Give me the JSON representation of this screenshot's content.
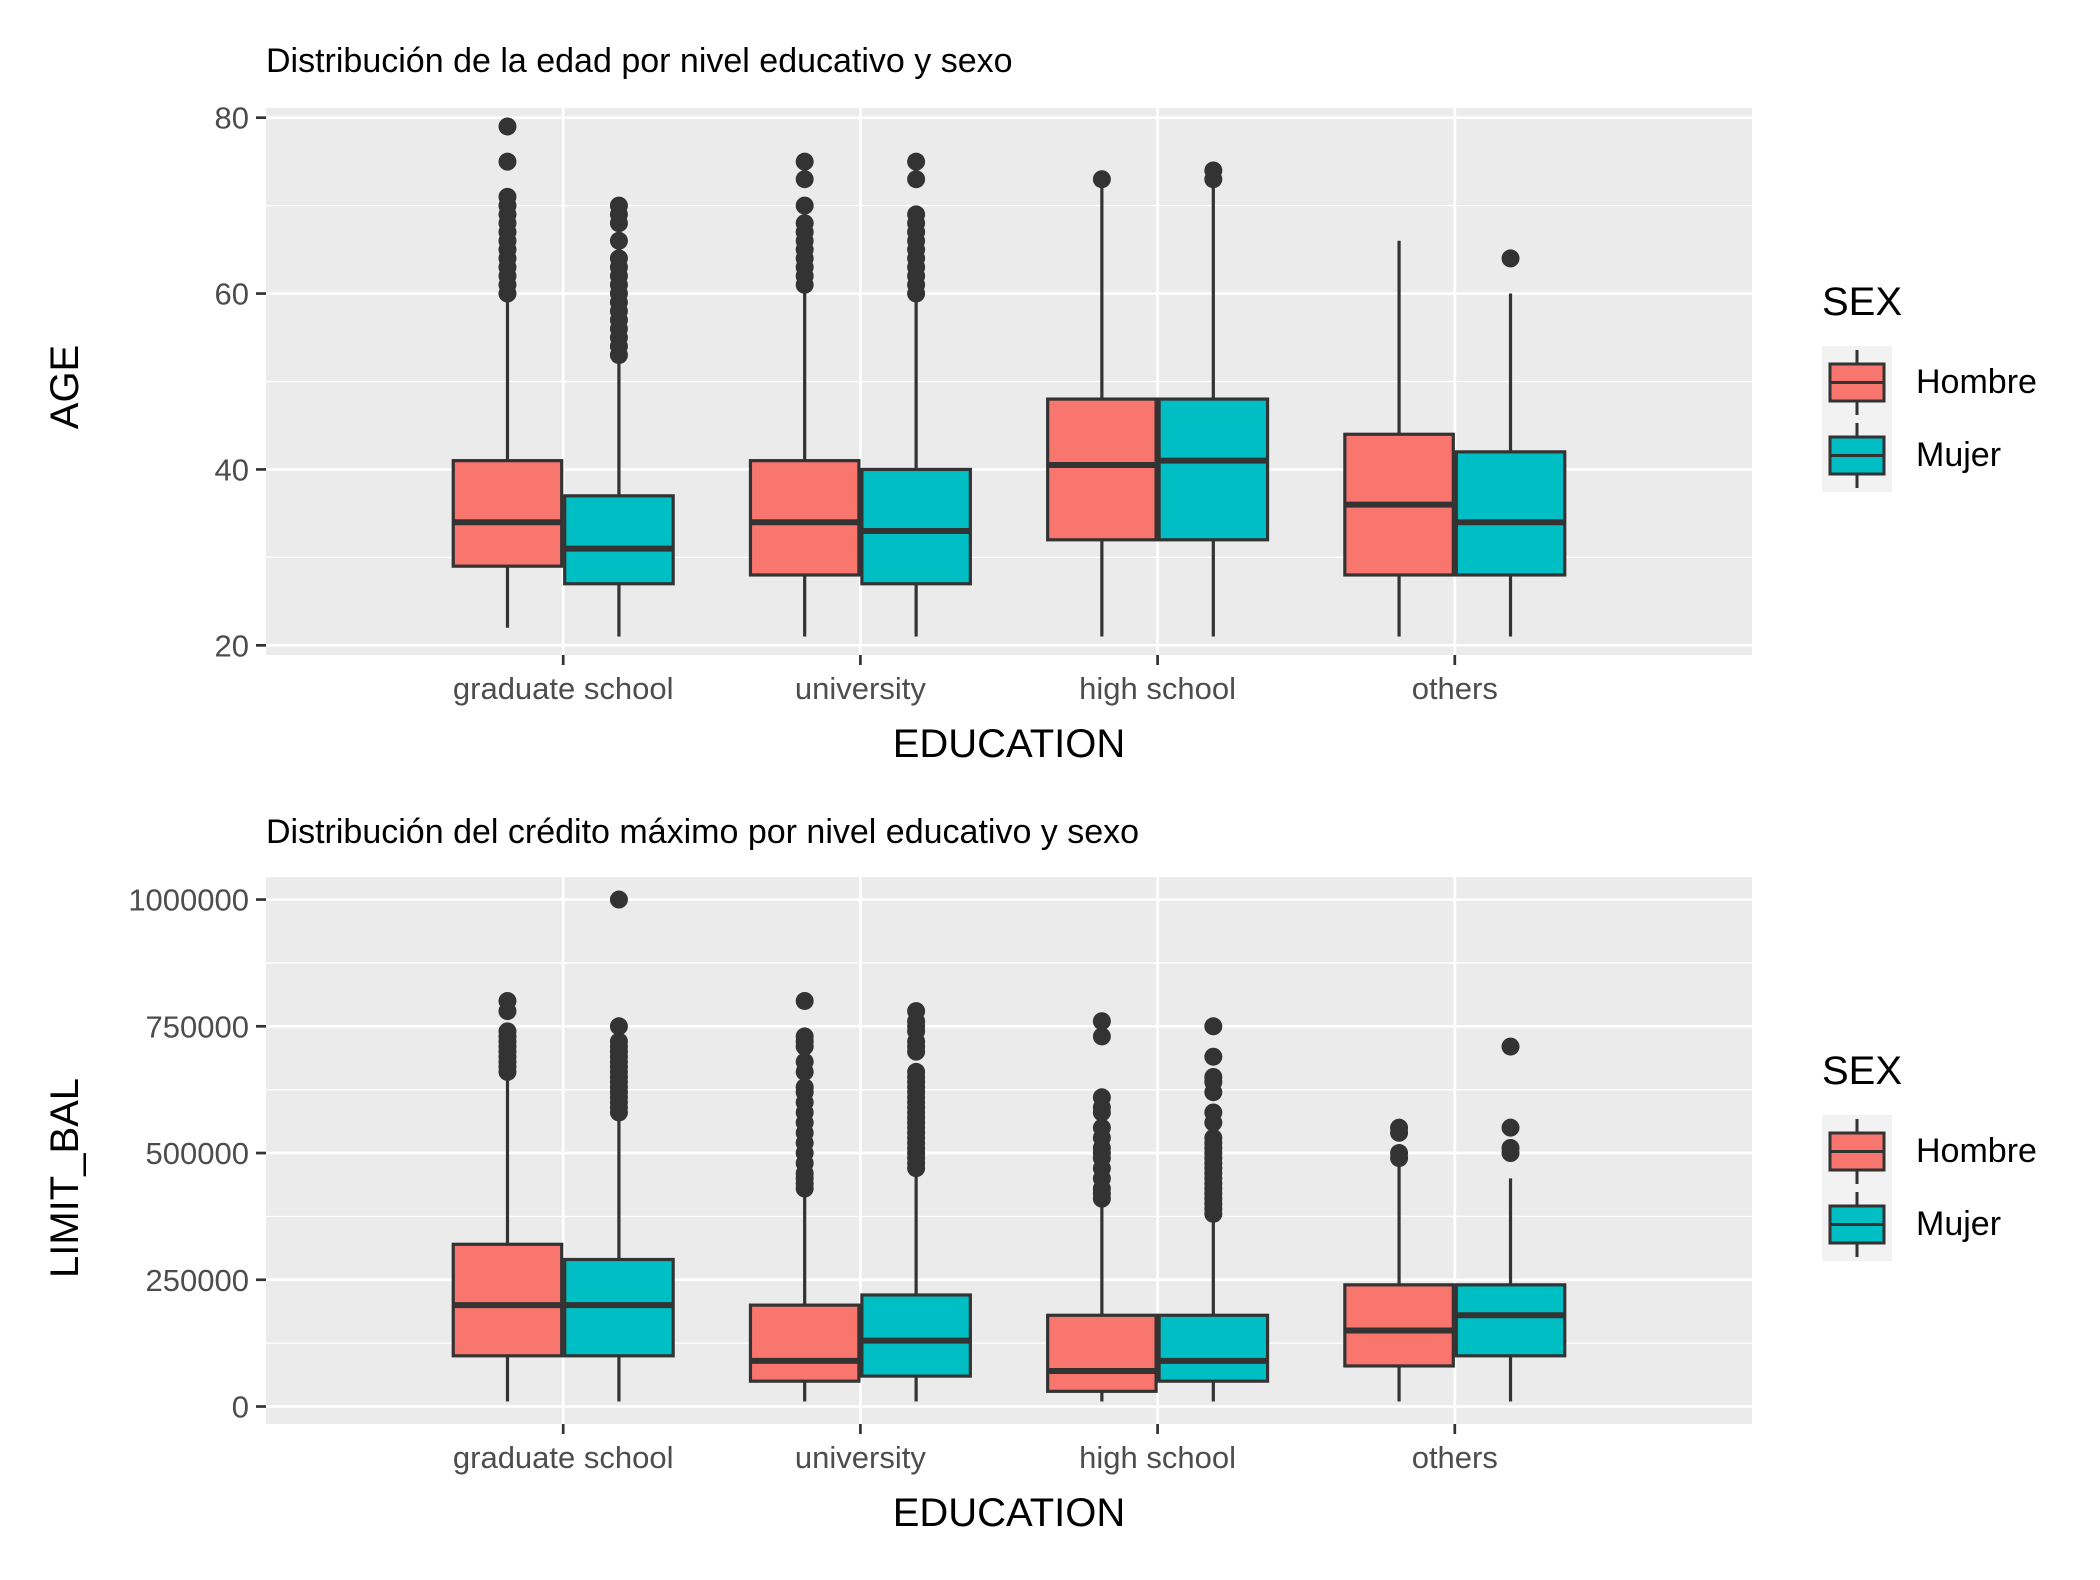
{
  "chart_data": [
    {
      "type": "boxplot",
      "title": "Distribución de la edad por nivel educativo y sexo",
      "xlabel": "EDUCATION",
      "ylabel": "AGE",
      "categories": [
        "graduate school",
        "university",
        "high school",
        "others"
      ],
      "ylim": [
        18.9,
        81.1
      ],
      "yticks": [
        20,
        40,
        60,
        80
      ],
      "ytick_labels": [
        "20",
        "40",
        "60",
        "80"
      ],
      "legend": {
        "title": "SEX",
        "placement": "right",
        "entries": [
          "Hombre",
          "Mujer"
        ]
      },
      "colors": {
        "Hombre": "#F8766D",
        "Mujer": "#00BFC4"
      },
      "series": [
        {
          "name": "Hombre",
          "boxes": [
            {
              "low": 22,
              "q1": 29,
              "median": 34,
              "q3": 41,
              "high": 59,
              "outliers": [
                60,
                61,
                62,
                63,
                64,
                65,
                66,
                67,
                68,
                69,
                70,
                71,
                75,
                79
              ]
            },
            {
              "low": 21,
              "q1": 28,
              "median": 34,
              "q3": 41,
              "high": 60,
              "outliers": [
                61,
                62,
                63,
                64,
                65,
                66,
                67,
                68,
                70,
                73,
                75
              ]
            },
            {
              "low": 21,
              "q1": 32,
              "median": 40.5,
              "q3": 48,
              "high": 72,
              "outliers": [
                73
              ]
            },
            {
              "low": 21,
              "q1": 28,
              "median": 36,
              "q3": 44,
              "high": 66,
              "outliers": []
            }
          ]
        },
        {
          "name": "Mujer",
          "boxes": [
            {
              "low": 21,
              "q1": 27,
              "median": 31,
              "q3": 37,
              "high": 52.5,
              "outliers": [
                53,
                54,
                55,
                56,
                57,
                58,
                59,
                60,
                61,
                62,
                63,
                64,
                66,
                68,
                69,
                70
              ]
            },
            {
              "low": 21,
              "q1": 27,
              "median": 33,
              "q3": 40,
              "high": 59,
              "outliers": [
                60,
                61,
                62,
                63,
                64,
                65,
                66,
                67,
                68,
                69,
                73,
                75
              ]
            },
            {
              "low": 21,
              "q1": 32,
              "median": 41,
              "q3": 48,
              "high": 72,
              "outliers": [
                73,
                74
              ]
            },
            {
              "low": 21,
              "q1": 28,
              "median": 34,
              "q3": 42,
              "high": 60,
              "outliers": [
                64
              ]
            }
          ]
        }
      ]
    },
    {
      "type": "boxplot",
      "title": "Distribución del crédito máximo por nivel educativo y sexo",
      "xlabel": "EDUCATION",
      "ylabel": "LIMIT_BAL",
      "categories": [
        "graduate school",
        "university",
        "high school",
        "others"
      ],
      "ylim": [
        -34500,
        1044500
      ],
      "yticks": [
        0,
        250000,
        500000,
        750000,
        1000000
      ],
      "ytick_labels": [
        "0",
        "250000",
        "500000",
        "750000",
        "1000000"
      ],
      "legend": {
        "title": "SEX",
        "placement": "right",
        "entries": [
          "Hombre",
          "Mujer"
        ]
      },
      "colors": {
        "Hombre": "#F8766D",
        "Mujer": "#00BFC4"
      },
      "series": [
        {
          "name": "Hombre",
          "boxes": [
            {
              "low": 10000,
              "q1": 100000,
              "median": 200000,
              "q3": 320000,
              "high": 650000,
              "outliers": [
                660000,
                670000,
                680000,
                690000,
                700000,
                710000,
                720000,
                730000,
                740000,
                780000,
                800000
              ]
            },
            {
              "low": 10000,
              "q1": 50000,
              "median": 90000,
              "q3": 200000,
              "high": 420000,
              "outliers": [
                430000,
                440000,
                450000,
                460000,
                480000,
                500000,
                520000,
                540000,
                560000,
                580000,
                600000,
                620000,
                630000,
                660000,
                680000,
                710000,
                720000,
                730000,
                800000
              ]
            },
            {
              "low": 10000,
              "q1": 30000,
              "median": 70000,
              "q3": 180000,
              "high": 400000,
              "outliers": [
                410000,
                420000,
                430000,
                450000,
                470000,
                490000,
                500000,
                510000,
                530000,
                550000,
                580000,
                590000,
                610000,
                730000,
                760000
              ]
            },
            {
              "low": 10000,
              "q1": 80000,
              "median": 150000,
              "q3": 240000,
              "high": 480000,
              "outliers": [
                490000,
                500000,
                540000,
                550000
              ]
            }
          ]
        },
        {
          "name": "Mujer",
          "boxes": [
            {
              "low": 10000,
              "q1": 100000,
              "median": 200000,
              "q3": 290000,
              "high": 570000,
              "outliers": [
                580000,
                590000,
                600000,
                610000,
                620000,
                630000,
                640000,
                650000,
                660000,
                670000,
                680000,
                690000,
                700000,
                710000,
                720000,
                750000,
                1000000
              ]
            },
            {
              "low": 10000,
              "q1": 60000,
              "median": 130000,
              "q3": 220000,
              "high": 460000,
              "outliers": [
                470000,
                480000,
                490000,
                500000,
                510000,
                520000,
                530000,
                540000,
                550000,
                560000,
                570000,
                580000,
                590000,
                600000,
                610000,
                620000,
                630000,
                640000,
                650000,
                660000,
                700000,
                710000,
                720000,
                740000,
                750000,
                760000,
                780000
              ]
            },
            {
              "low": 10000,
              "q1": 50000,
              "median": 90000,
              "q3": 180000,
              "high": 370000,
              "outliers": [
                380000,
                390000,
                400000,
                410000,
                420000,
                430000,
                440000,
                450000,
                460000,
                470000,
                480000,
                490000,
                500000,
                510000,
                520000,
                530000,
                560000,
                580000,
                620000,
                640000,
                650000,
                690000,
                750000
              ]
            },
            {
              "low": 10000,
              "q1": 100000,
              "median": 180000,
              "q3": 240000,
              "high": 450000,
              "outliers": [
                500000,
                510000,
                550000,
                710000
              ]
            }
          ]
        }
      ]
    }
  ]
}
